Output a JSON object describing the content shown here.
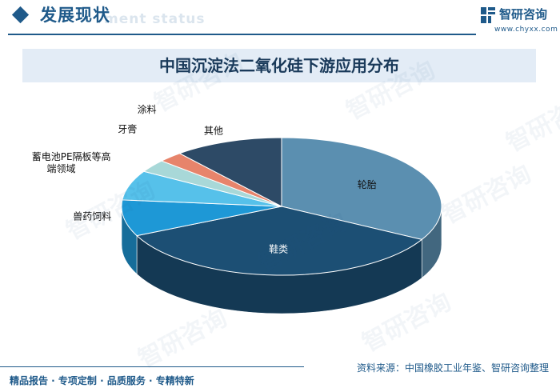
{
  "header": {
    "section_title": "发展现状",
    "section_subtitle": "ment status",
    "brand_name": "智研咨询",
    "brand_url": "www.chyxx.com"
  },
  "watermark_text": "智研咨询",
  "chart_data": {
    "type": "pie",
    "title": "中国沉淀法二氧化硅下游应用分布",
    "categories": [
      "轮胎",
      "鞋类",
      "兽药饲料",
      "蓄电池PE隔板等高端领域",
      "牙膏",
      "涂料",
      "其他"
    ],
    "values": [
      33,
      35,
      8.5,
      7,
      3,
      2.5,
      11
    ],
    "display_labels": [
      "轮胎",
      "鞋类",
      "兽药饲料",
      "蓄电池PE隔板等高\n端领域",
      "牙膏",
      "涂料",
      "其他"
    ],
    "colors": [
      "#5b8fb0",
      "#1c4f74",
      "#1e98d6",
      "#56c1ea",
      "#a8d8d8",
      "#e7846b",
      "#2d4a66"
    ]
  },
  "source": "资料来源：中国橡胶工业年鉴、智研咨询整理",
  "footer": {
    "tagline": "精品报告 · 专项定制 · 品质服务 · 专精特新"
  }
}
